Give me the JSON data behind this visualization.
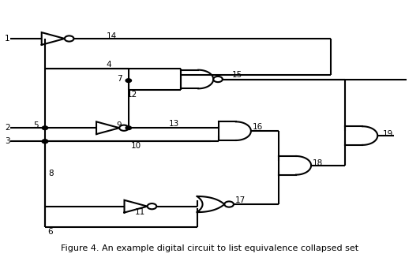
{
  "title": "Figure 4. An example digital circuit to list equivalence collapsed set",
  "bg": "#ffffff",
  "lc": "#000000",
  "lw": 1.5,
  "br": 0.011,
  "dot_r": 0.007,
  "figsize": [
    5.32,
    3.31
  ],
  "dpi": 100
}
